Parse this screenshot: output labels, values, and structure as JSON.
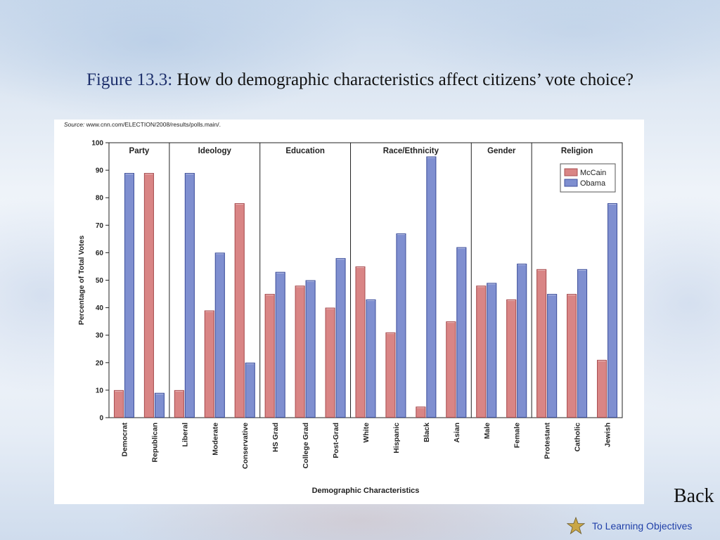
{
  "slide": {
    "title_label": "Figure 13.3:",
    "title_rest": " How do demographic characteristics affect citizens’ vote choice?",
    "back_label": "Back",
    "objectives_label": "To Learning Objectives",
    "objectives_icon": "star-icon"
  },
  "chart_data": {
    "type": "bar",
    "source_prefix": "Source:",
    "source_text": " www.cnn.com/ELECTION/2008/results/polls.main/.",
    "ylabel": "Percentage of Total Votes",
    "xlabel": "Demographic Characteristics",
    "ylim": [
      0,
      100
    ],
    "yticks": [
      0,
      10,
      20,
      30,
      40,
      50,
      60,
      70,
      80,
      90,
      100
    ],
    "groups": [
      {
        "name": "Party",
        "categories": [
          "Democrat",
          "Republican"
        ]
      },
      {
        "name": "Ideology",
        "categories": [
          "Liberal",
          "Moderate",
          "Conservative"
        ]
      },
      {
        "name": "Education",
        "categories": [
          "HS Grad",
          "College Grad",
          "Post-Grad"
        ]
      },
      {
        "name": "Race/Ethnicity",
        "categories": [
          "White",
          "Hispanic",
          "Black",
          "Asian"
        ]
      },
      {
        "name": "Gender",
        "categories": [
          "Male",
          "Female"
        ]
      },
      {
        "name": "Religion",
        "categories": [
          "Protestant",
          "Catholic",
          "Jewish"
        ]
      }
    ],
    "categories": [
      "Democrat",
      "Republican",
      "Liberal",
      "Moderate",
      "Conservative",
      "HS Grad",
      "College Grad",
      "Post-Grad",
      "White",
      "Hispanic",
      "Black",
      "Asian",
      "Male",
      "Female",
      "Protestant",
      "Catholic",
      "Jewish"
    ],
    "series": [
      {
        "name": "McCain",
        "color": "#d98585",
        "values": [
          10,
          89,
          10,
          39,
          78,
          45,
          48,
          40,
          55,
          31,
          4,
          35,
          48,
          43,
          54,
          45,
          21
        ]
      },
      {
        "name": "Obama",
        "color": "#7f8fd0",
        "values": [
          89,
          9,
          89,
          60,
          20,
          53,
          50,
          58,
          43,
          67,
          95,
          62,
          49,
          56,
          45,
          54,
          78
        ]
      }
    ],
    "legend_position": "top-right",
    "grid": false
  }
}
